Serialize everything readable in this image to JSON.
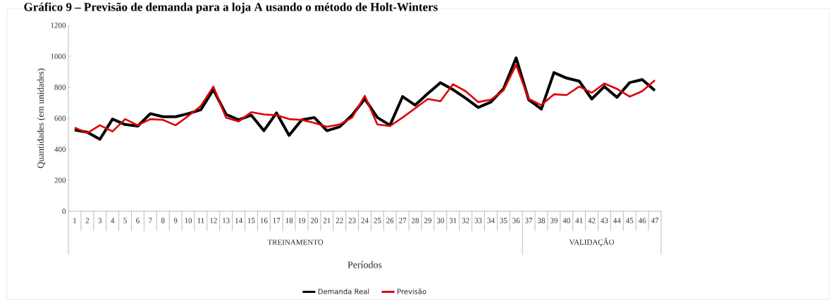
{
  "chart_data": {
    "type": "line",
    "title": "Gráfico 9 – Previsão de demanda para a loja A usando o método de Holt-Winters",
    "xlabel": "Períodos",
    "ylabel": "Quantidades (em unidades)",
    "categories": [
      "1",
      "2",
      "3",
      "4",
      "5",
      "6",
      "7",
      "8",
      "9",
      "10",
      "11",
      "12",
      "13",
      "14",
      "15",
      "16",
      "17",
      "18",
      "19",
      "20",
      "21",
      "22",
      "23",
      "24",
      "25",
      "26",
      "27",
      "28",
      "29",
      "30",
      "31",
      "32",
      "33",
      "34",
      "35",
      "36",
      "37",
      "38",
      "39",
      "40",
      "41",
      "42",
      "43",
      "44",
      "45",
      "46",
      "47"
    ],
    "series": [
      {
        "name": "Demanda Real",
        "color": "#000000",
        "values": [
          525,
          510,
          465,
          595,
          560,
          550,
          630,
          610,
          610,
          630,
          655,
          785,
          625,
          590,
          620,
          520,
          635,
          490,
          590,
          605,
          520,
          545,
          620,
          725,
          605,
          555,
          740,
          685,
          760,
          830,
          785,
          730,
          670,
          705,
          790,
          990,
          720,
          660,
          895,
          860,
          840,
          725,
          805,
          735,
          830,
          850,
          780
        ]
      },
      {
        "name": "Previsão",
        "color": "#e00000",
        "values": [
          540,
          505,
          555,
          515,
          595,
          555,
          595,
          590,
          555,
          615,
          680,
          805,
          605,
          580,
          640,
          625,
          620,
          595,
          590,
          570,
          545,
          560,
          605,
          745,
          560,
          550,
          605,
          665,
          725,
          710,
          820,
          775,
          705,
          720,
          780,
          945,
          725,
          685,
          755,
          750,
          805,
          765,
          825,
          790,
          740,
          775,
          845
        ]
      }
    ],
    "annotations": [
      "TREINAMENTO",
      "VALIDAÇÃO"
    ],
    "ylim": [
      0,
      1200
    ],
    "yticks": [
      0,
      200,
      400,
      600,
      800,
      1000,
      1200
    ],
    "legend": "bottom",
    "marker": "none",
    "line_style": "solid"
  }
}
